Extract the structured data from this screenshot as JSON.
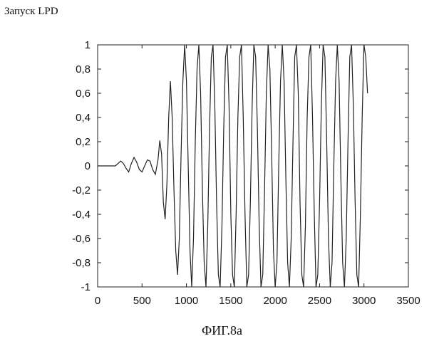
{
  "title": "Запуск LPD",
  "caption": "ФИГ.8a",
  "chart_data": {
    "type": "line",
    "xlim": [
      0,
      3500
    ],
    "ylim": [
      -1,
      1
    ],
    "x_ticks": [
      "0",
      "500",
      "1000",
      "1500",
      "2000",
      "2500",
      "3000",
      "3500"
    ],
    "y_ticks": [
      "1",
      "0,8",
      "0,6",
      "0,4",
      "0,2",
      "0",
      "-0,2",
      "-0,4",
      "-0,6",
      "-0,8",
      "-1"
    ],
    "grid": false,
    "series": [
      {
        "color": "#222222",
        "x_start": 0,
        "x_end": 3040,
        "values": [
          [
            0,
            0.0
          ],
          [
            40,
            0.0
          ],
          [
            80,
            0.0
          ],
          [
            120,
            0.0
          ],
          [
            160,
            0.0
          ],
          [
            200,
            0.0
          ],
          [
            230,
            0.02
          ],
          [
            260,
            0.04
          ],
          [
            290,
            0.02
          ],
          [
            320,
            -0.02
          ],
          [
            350,
            -0.05
          ],
          [
            380,
            0.02
          ],
          [
            410,
            0.07
          ],
          [
            440,
            0.03
          ],
          [
            470,
            -0.03
          ],
          [
            500,
            -0.05
          ],
          [
            530,
            0.0
          ],
          [
            560,
            0.05
          ],
          [
            590,
            0.04
          ],
          [
            620,
            -0.03
          ],
          [
            650,
            -0.07
          ],
          [
            680,
            0.05
          ],
          [
            700,
            0.21
          ],
          [
            720,
            0.1
          ],
          [
            740,
            -0.3
          ],
          [
            760,
            -0.44
          ],
          [
            780,
            -0.15
          ],
          [
            800,
            0.4
          ],
          [
            820,
            0.7
          ],
          [
            840,
            0.4
          ],
          [
            860,
            -0.2
          ],
          [
            880,
            -0.7
          ],
          [
            900,
            -0.9
          ],
          [
            920,
            -0.6
          ],
          [
            940,
            0.1
          ],
          [
            960,
            0.7
          ],
          [
            980,
            1.0
          ],
          [
            1000,
            0.7
          ],
          [
            1020,
            0.0
          ],
          [
            1040,
            -0.7
          ],
          [
            1060,
            -1.0
          ],
          [
            1080,
            -0.6
          ],
          [
            1100,
            0.2
          ],
          [
            1120,
            0.8
          ],
          [
            1140,
            1.0
          ],
          [
            1160,
            0.6
          ],
          [
            1180,
            -0.2
          ],
          [
            1200,
            -0.8
          ],
          [
            1220,
            -1.0
          ],
          [
            1240,
            -0.5
          ],
          [
            1260,
            0.3
          ],
          [
            1280,
            0.9
          ],
          [
            1300,
            1.0
          ],
          [
            1320,
            0.5
          ],
          [
            1340,
            -0.3
          ],
          [
            1360,
            -0.9
          ],
          [
            1380,
            -1.0
          ],
          [
            1400,
            -0.5
          ],
          [
            1420,
            0.3
          ],
          [
            1440,
            0.9
          ],
          [
            1460,
            1.0
          ],
          [
            1480,
            0.5
          ],
          [
            1500,
            -0.4
          ],
          [
            1520,
            -0.9
          ],
          [
            1540,
            -1.0
          ],
          [
            1560,
            -0.4
          ],
          [
            1580,
            0.4
          ],
          [
            1600,
            0.9
          ],
          [
            1620,
            1.0
          ],
          [
            1640,
            0.4
          ],
          [
            1660,
            -0.4
          ],
          [
            1680,
            -1.0
          ],
          [
            1700,
            -0.9
          ],
          [
            1720,
            -0.3
          ],
          [
            1740,
            0.5
          ],
          [
            1760,
            1.0
          ],
          [
            1780,
            0.9
          ],
          [
            1800,
            0.3
          ],
          [
            1820,
            -0.5
          ],
          [
            1840,
            -1.0
          ],
          [
            1860,
            -0.9
          ],
          [
            1880,
            -0.2
          ],
          [
            1900,
            0.6
          ],
          [
            1920,
            1.0
          ],
          [
            1940,
            0.8
          ],
          [
            1960,
            0.1
          ],
          [
            1980,
            -0.7
          ],
          [
            2000,
            -1.0
          ],
          [
            2020,
            -0.8
          ],
          [
            2040,
            0.0
          ],
          [
            2060,
            0.7
          ],
          [
            2080,
            1.0
          ],
          [
            2100,
            0.7
          ],
          [
            2120,
            -0.1
          ],
          [
            2140,
            -0.8
          ],
          [
            2160,
            -1.0
          ],
          [
            2180,
            -0.6
          ],
          [
            2200,
            0.2
          ],
          [
            2220,
            0.9
          ],
          [
            2240,
            1.0
          ],
          [
            2260,
            0.6
          ],
          [
            2280,
            -0.3
          ],
          [
            2300,
            -0.9
          ],
          [
            2320,
            -1.0
          ],
          [
            2340,
            -0.5
          ],
          [
            2360,
            0.4
          ],
          [
            2380,
            0.9
          ],
          [
            2400,
            1.0
          ],
          [
            2420,
            0.4
          ],
          [
            2440,
            -0.4
          ],
          [
            2460,
            -1.0
          ],
          [
            2480,
            -0.9
          ],
          [
            2500,
            -0.3
          ],
          [
            2520,
            0.5
          ],
          [
            2540,
            1.0
          ],
          [
            2560,
            0.9
          ],
          [
            2580,
            0.2
          ],
          [
            2600,
            -0.6
          ],
          [
            2620,
            -1.0
          ],
          [
            2640,
            -0.8
          ],
          [
            2660,
            0.0
          ],
          [
            2680,
            0.7
          ],
          [
            2700,
            1.0
          ],
          [
            2720,
            0.7
          ],
          [
            2740,
            -0.1
          ],
          [
            2760,
            -0.8
          ],
          [
            2780,
            -1.0
          ],
          [
            2800,
            -0.6
          ],
          [
            2820,
            0.2
          ],
          [
            2840,
            0.9
          ],
          [
            2860,
            1.0
          ],
          [
            2880,
            0.5
          ],
          [
            2900,
            -0.3
          ],
          [
            2920,
            -0.9
          ],
          [
            2940,
            -1.0
          ],
          [
            2960,
            -0.4
          ],
          [
            2980,
            0.4
          ],
          [
            3000,
            1.0
          ],
          [
            3020,
            0.9
          ],
          [
            3040,
            0.6
          ]
        ]
      }
    ]
  }
}
